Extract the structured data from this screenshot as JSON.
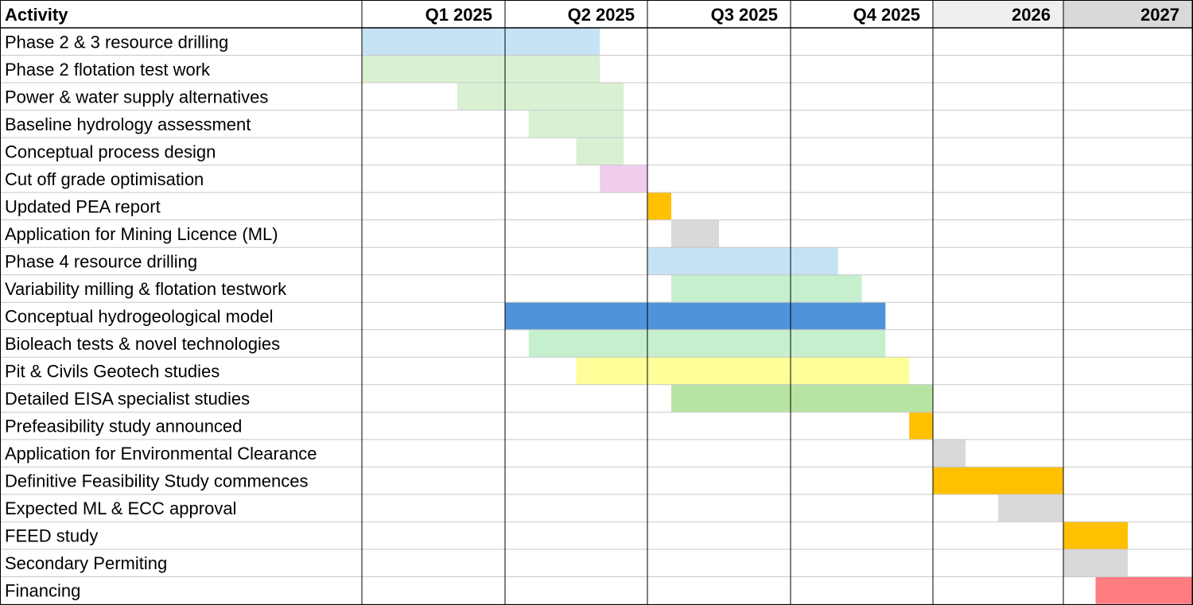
{
  "chart_data": {
    "type": "gantt",
    "title": "",
    "header": {
      "activity": "Activity",
      "periods": [
        "Q1 2025",
        "Q2 2025",
        "Q3 2025",
        "Q4 2025",
        "2026",
        "2027"
      ]
    },
    "period_fills": [
      "#ffffff",
      "#ffffff",
      "#ffffff",
      "#ffffff",
      "#efefef",
      "#d9d9d9"
    ],
    "timeline_months": [
      0,
      3,
      6,
      9,
      12,
      24,
      36
    ],
    "tasks": [
      {
        "label": "Phase 2 & 3 resource drilling",
        "start": 0,
        "end": 5,
        "color": "#c5e3f5"
      },
      {
        "label": "Phase 2 flotation test work",
        "start": 0,
        "end": 5,
        "color": "#d9f0d2"
      },
      {
        "label": "Power & water supply alternatives",
        "start": 2,
        "end": 5.5,
        "color": "#d9f0d2"
      },
      {
        "label": "Baseline hydrology assessment",
        "start": 3.5,
        "end": 5.5,
        "color": "#d9f0d2"
      },
      {
        "label": "Conceptual process design",
        "start": 4.5,
        "end": 5.5,
        "color": "#d9f0d2"
      },
      {
        "label": "Cut off grade optimisation",
        "start": 5,
        "end": 6,
        "color": "#f0cdec"
      },
      {
        "label": "Updated PEA report",
        "start": 6,
        "end": 6.5,
        "color": "#ffc000"
      },
      {
        "label": "Application for Mining Licence (ML)",
        "start": 6.5,
        "end": 7.5,
        "color": "#d9d9d9"
      },
      {
        "label": "Phase 4 resource drilling",
        "start": 6,
        "end": 10,
        "color": "#c5e3f5"
      },
      {
        "label": "Variability milling & flotation testwork",
        "start": 6.5,
        "end": 10.5,
        "color": "#c6efce"
      },
      {
        "label": "Conceptual hydrogeological model",
        "start": 3,
        "end": 11,
        "color": "#4e94da"
      },
      {
        "label": "Bioleach tests & novel technologies",
        "start": 3.5,
        "end": 11,
        "color": "#c6efce"
      },
      {
        "label": "Pit & Civils Geotech studies",
        "start": 4.5,
        "end": 11.5,
        "color": "#ffff99"
      },
      {
        "label": "Detailed EISA specialist studies",
        "start": 6.5,
        "end": 12,
        "color": "#b7e4a3"
      },
      {
        "label": "Prefeasibility study announced",
        "start": 11.5,
        "end": 12,
        "color": "#ffc000"
      },
      {
        "label": "Application for Environmental Clearance",
        "start": 12,
        "end": 15,
        "color": "#d9d9d9"
      },
      {
        "label": "Definitive Feasibility Study commences",
        "start": 12,
        "end": 24,
        "color": "#ffc000"
      },
      {
        "label": "Expected ML & ECC approval",
        "start": 18,
        "end": 24,
        "color": "#d9d9d9"
      },
      {
        "label": "FEED study",
        "start": 24,
        "end": 30,
        "color": "#ffc000"
      },
      {
        "label": "Secondary Permiting",
        "start": 24,
        "end": 30,
        "color": "#d9d9d9"
      },
      {
        "label": "Financing",
        "start": 27,
        "end": 36,
        "color": "#ff7c80"
      }
    ]
  }
}
